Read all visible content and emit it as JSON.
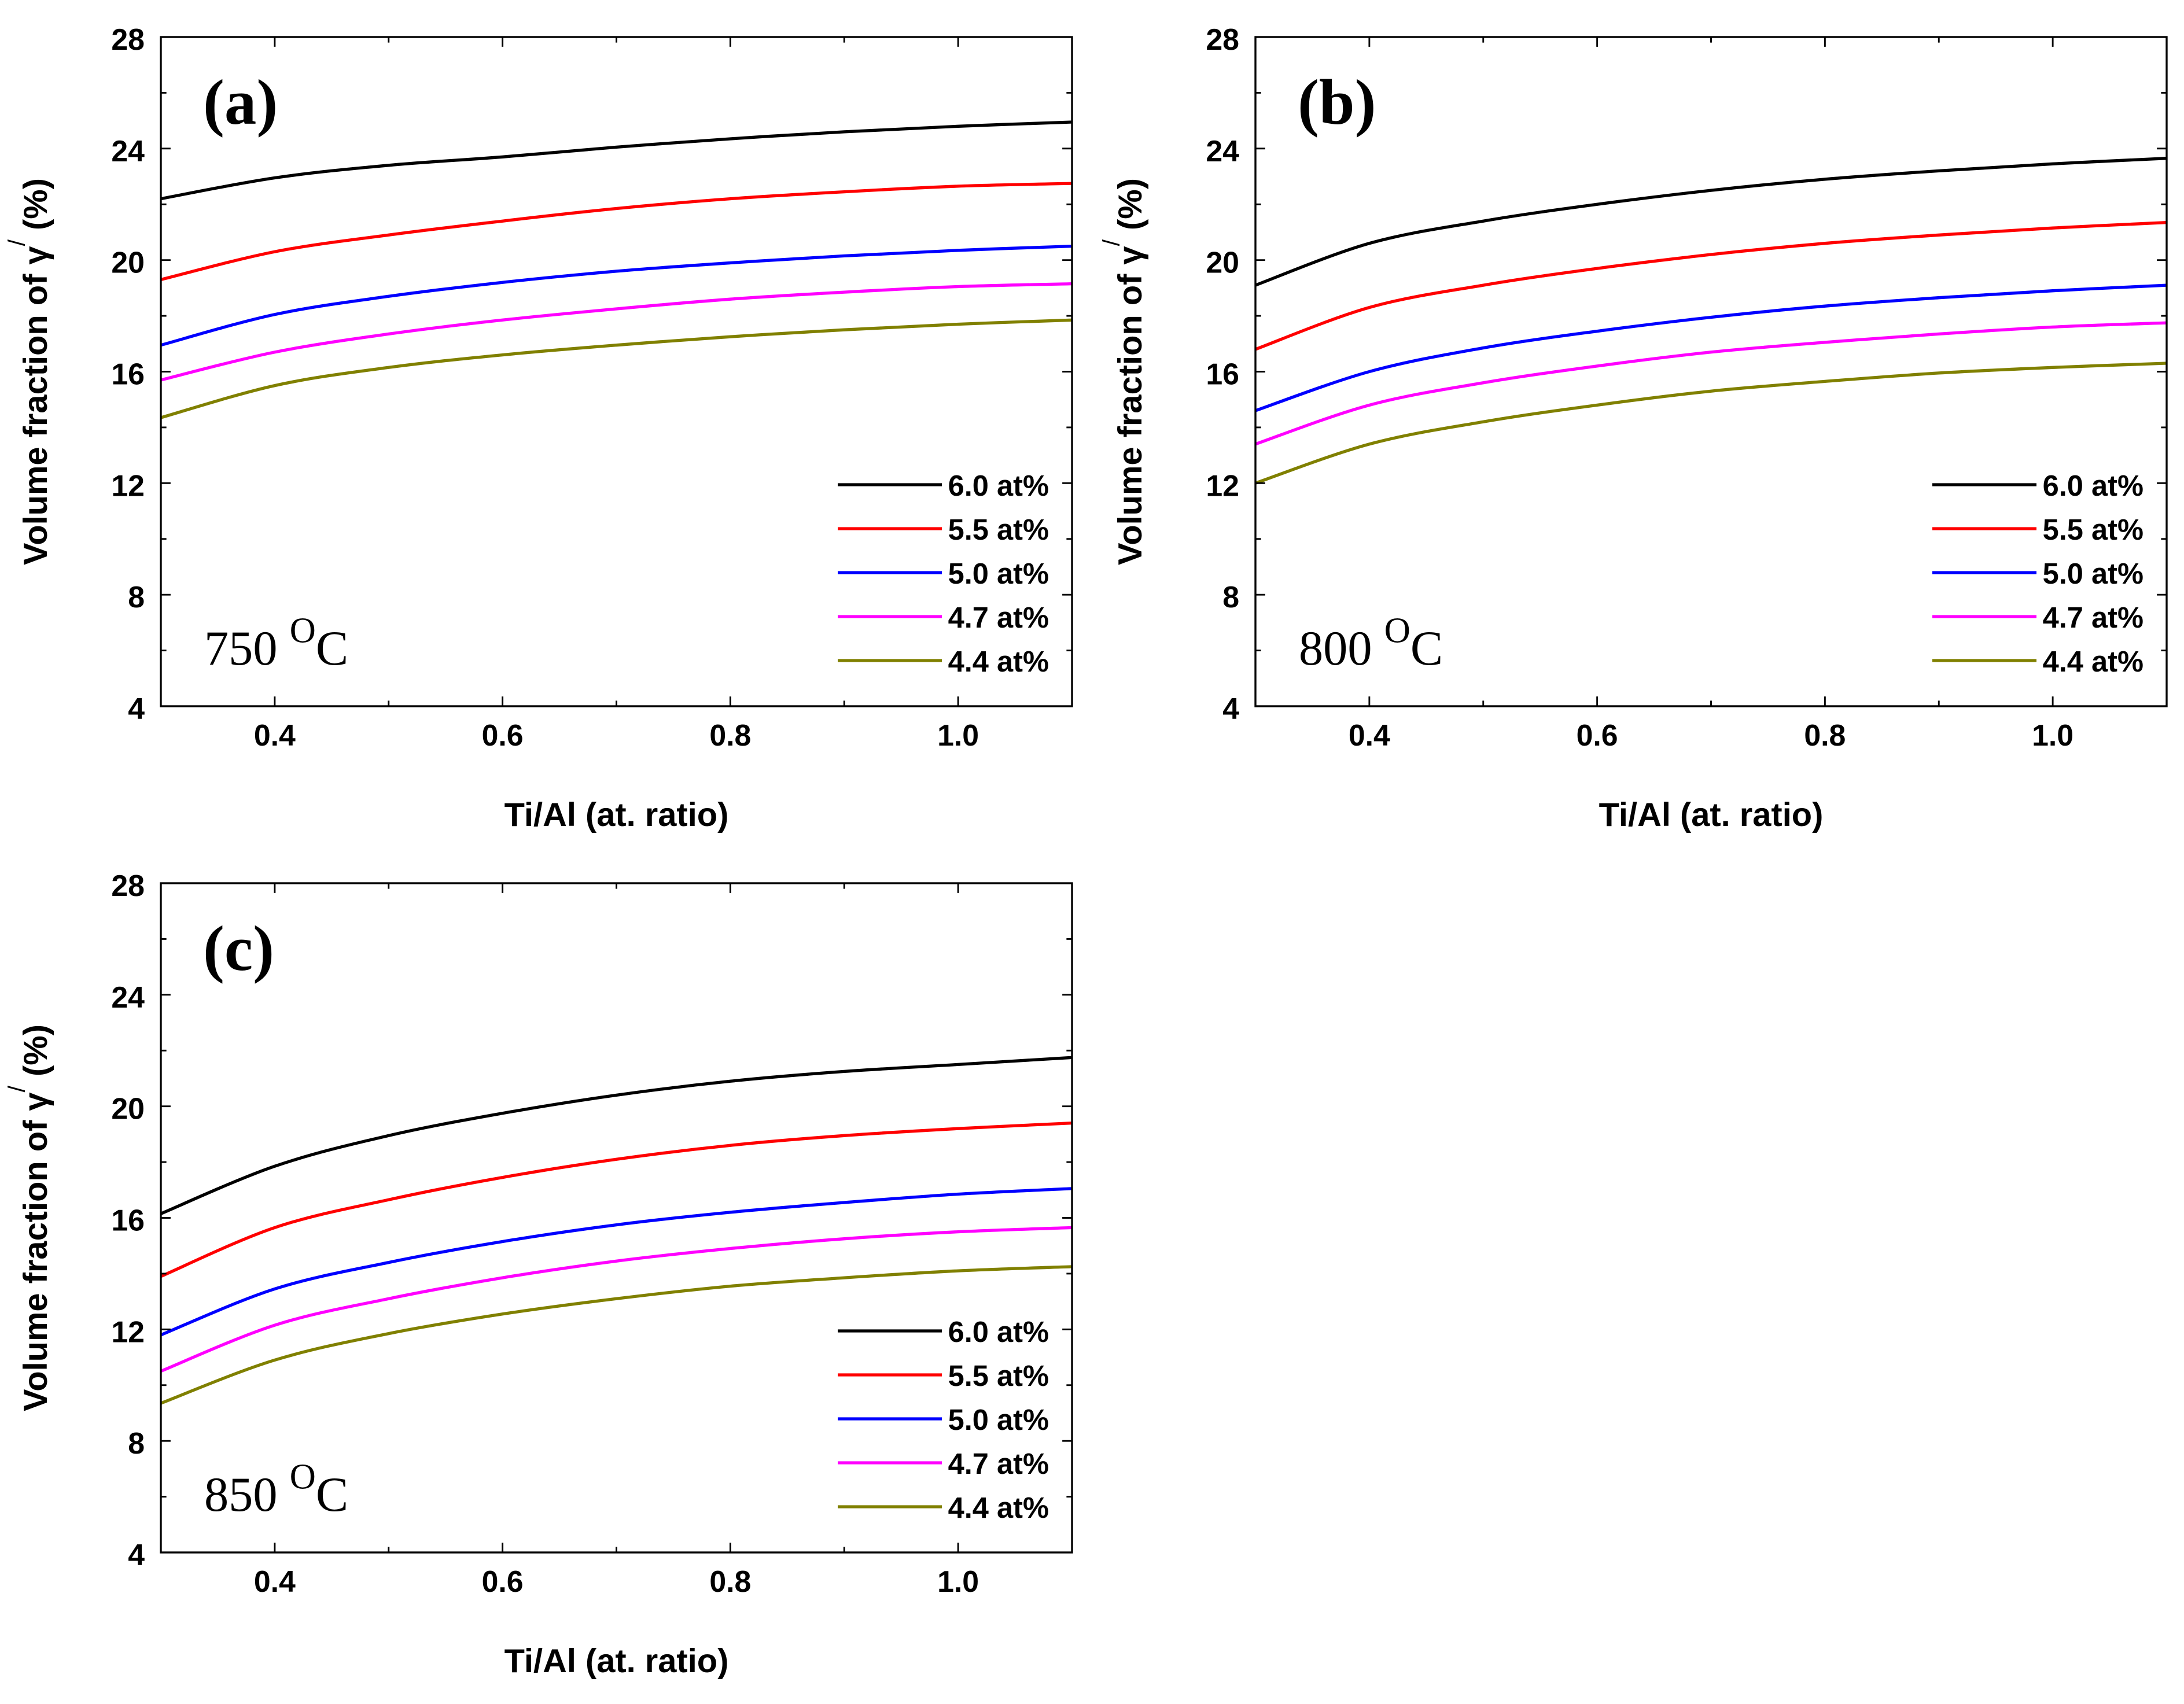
{
  "figure": {
    "panels": [
      {
        "letter": "(a)",
        "temperature": "750",
        "degree_unit": "C"
      },
      {
        "letter": "(b)",
        "temperature": "800",
        "degree_unit": "C"
      },
      {
        "letter": "(c)",
        "temperature": "850",
        "degree_unit": "C"
      }
    ]
  },
  "chart_data": [
    {
      "type": "line",
      "panel_label": "(a)",
      "annotation": "750 °C",
      "xlabel": "Ti/Al (at. ratio)",
      "ylabel": "Volume fraction of γ/ (%)",
      "xlim": [
        0.3,
        1.1
      ],
      "ylim": [
        4,
        28
      ],
      "xticks": [
        0.4,
        0.6,
        0.8,
        1.0
      ],
      "xtick_labels": [
        "0.4",
        "0.6",
        "0.8",
        "1.0"
      ],
      "yticks": [
        4,
        8,
        12,
        16,
        20,
        24,
        28
      ],
      "ytick_labels": [
        "4",
        "8",
        "12",
        "16",
        "20",
        "24",
        "28"
      ],
      "grid": false,
      "legend_position": "bottom-right",
      "x": [
        0.3,
        0.4,
        0.5,
        0.6,
        0.7,
        0.8,
        0.9,
        1.0,
        1.1
      ],
      "series": [
        {
          "name": "6.0 at%",
          "color": "#000000",
          "values": [
            22.2,
            22.95,
            23.4,
            23.7,
            24.05,
            24.35,
            24.6,
            24.8,
            24.95
          ]
        },
        {
          "name": "5.5 at%",
          "color": "#ff0000",
          "values": [
            19.3,
            20.3,
            20.9,
            21.4,
            21.85,
            22.2,
            22.45,
            22.65,
            22.75
          ]
        },
        {
          "name": "5.0 at%",
          "color": "#0000ff",
          "values": [
            16.95,
            18.05,
            18.7,
            19.2,
            19.6,
            19.9,
            20.15,
            20.35,
            20.5
          ]
        },
        {
          "name": "4.7 at%",
          "color": "#ff00ff",
          "values": [
            15.7,
            16.7,
            17.35,
            17.85,
            18.25,
            18.6,
            18.85,
            19.05,
            19.15
          ]
        },
        {
          "name": "4.4 at%",
          "color": "#808000",
          "values": [
            14.35,
            15.5,
            16.15,
            16.6,
            16.95,
            17.25,
            17.5,
            17.7,
            17.85
          ]
        }
      ]
    },
    {
      "type": "line",
      "panel_label": "(b)",
      "annotation": "800 °C",
      "xlabel": "Ti/Al (at. ratio)",
      "ylabel": "Volume fraction of γ/ (%)",
      "xlim": [
        0.3,
        1.1
      ],
      "ylim": [
        4,
        28
      ],
      "xticks": [
        0.4,
        0.6,
        0.8,
        1.0
      ],
      "xtick_labels": [
        "0.4",
        "0.6",
        "0.8",
        "1.0"
      ],
      "yticks": [
        4,
        8,
        12,
        16,
        20,
        24,
        28
      ],
      "ytick_labels": [
        "4",
        "8",
        "12",
        "16",
        "20",
        "24",
        "28"
      ],
      "grid": false,
      "legend_position": "bottom-right",
      "x": [
        0.3,
        0.4,
        0.5,
        0.6,
        0.7,
        0.8,
        0.9,
        1.0,
        1.1
      ],
      "series": [
        {
          "name": "6.0 at%",
          "color": "#000000",
          "values": [
            19.1,
            20.6,
            21.4,
            22.0,
            22.5,
            22.9,
            23.2,
            23.45,
            23.65
          ]
        },
        {
          "name": "5.5 at%",
          "color": "#ff0000",
          "values": [
            16.8,
            18.3,
            19.1,
            19.7,
            20.2,
            20.6,
            20.9,
            21.15,
            21.35
          ]
        },
        {
          "name": "5.0 at%",
          "color": "#0000ff",
          "values": [
            14.6,
            16.0,
            16.85,
            17.45,
            17.95,
            18.35,
            18.65,
            18.9,
            19.1
          ]
        },
        {
          "name": "4.7 at%",
          "color": "#ff00ff",
          "values": [
            13.4,
            14.8,
            15.6,
            16.2,
            16.7,
            17.05,
            17.35,
            17.6,
            17.75
          ]
        },
        {
          "name": "4.4 at%",
          "color": "#808000",
          "values": [
            12.0,
            13.4,
            14.2,
            14.8,
            15.3,
            15.65,
            15.95,
            16.15,
            16.3
          ]
        }
      ]
    },
    {
      "type": "line",
      "panel_label": "(c)",
      "annotation": "850 °C",
      "xlabel": "Ti/Al (at. ratio)",
      "ylabel": "Volume fraction of γ/ (%)",
      "xlim": [
        0.3,
        1.1
      ],
      "ylim": [
        4,
        28
      ],
      "xticks": [
        0.4,
        0.6,
        0.8,
        1.0
      ],
      "xtick_labels": [
        "0.4",
        "0.6",
        "0.8",
        "1.0"
      ],
      "yticks": [
        4,
        8,
        12,
        16,
        20,
        24,
        28
      ],
      "ytick_labels": [
        "4",
        "8",
        "12",
        "16",
        "20",
        "24",
        "28"
      ],
      "grid": false,
      "legend_position": "bottom-right",
      "x": [
        0.3,
        0.4,
        0.5,
        0.6,
        0.7,
        0.8,
        0.9,
        1.0,
        1.1
      ],
      "series": [
        {
          "name": "6.0 at%",
          "color": "#000000",
          "values": [
            16.15,
            17.85,
            18.95,
            19.75,
            20.4,
            20.9,
            21.25,
            21.5,
            21.75
          ]
        },
        {
          "name": "5.5 at%",
          "color": "#ff0000",
          "values": [
            13.9,
            15.65,
            16.65,
            17.45,
            18.1,
            18.6,
            18.95,
            19.2,
            19.4
          ]
        },
        {
          "name": "5.0 at%",
          "color": "#0000ff",
          "values": [
            11.8,
            13.45,
            14.4,
            15.15,
            15.75,
            16.2,
            16.55,
            16.85,
            17.05
          ]
        },
        {
          "name": "4.7 at%",
          "color": "#ff00ff",
          "values": [
            10.5,
            12.15,
            13.1,
            13.85,
            14.45,
            14.9,
            15.25,
            15.5,
            15.65
          ]
        },
        {
          "name": "4.4 at%",
          "color": "#808000",
          "values": [
            9.35,
            10.9,
            11.85,
            12.55,
            13.1,
            13.55,
            13.85,
            14.1,
            14.25
          ]
        }
      ]
    }
  ]
}
